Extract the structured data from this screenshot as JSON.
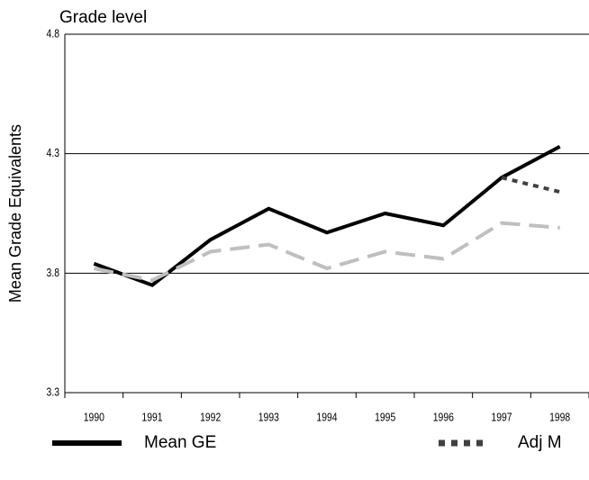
{
  "chart_data": {
    "type": "line",
    "title": "Grade level",
    "y_label": "Mean Grade Equivalents",
    "categories": [
      "1990",
      "1991",
      "1992",
      "1993",
      "1994",
      "1995",
      "1996",
      "1997",
      "1998"
    ],
    "series": [
      {
        "name": "Mean GE",
        "color": "#000000",
        "line_style": "solid",
        "values": [
          3.84,
          3.75,
          3.94,
          4.07,
          3.97,
          4.05,
          4.0,
          4.2,
          4.33
        ]
      },
      {
        "color": "#bfbfbf",
        "line_style": "dashed",
        "values": [
          3.82,
          3.77,
          3.89,
          3.92,
          3.82,
          3.89,
          3.86,
          4.01,
          3.99
        ]
      },
      {
        "name": "Adj M",
        "color": "#404040",
        "line_style": "dotted",
        "values": [
          null,
          null,
          null,
          null,
          null,
          null,
          null,
          4.2,
          4.14
        ]
      }
    ],
    "ylim": [
      3.3,
      4.8
    ],
    "yticks": [
      3.3,
      3.8,
      4.3,
      4.8
    ],
    "grid": true
  }
}
